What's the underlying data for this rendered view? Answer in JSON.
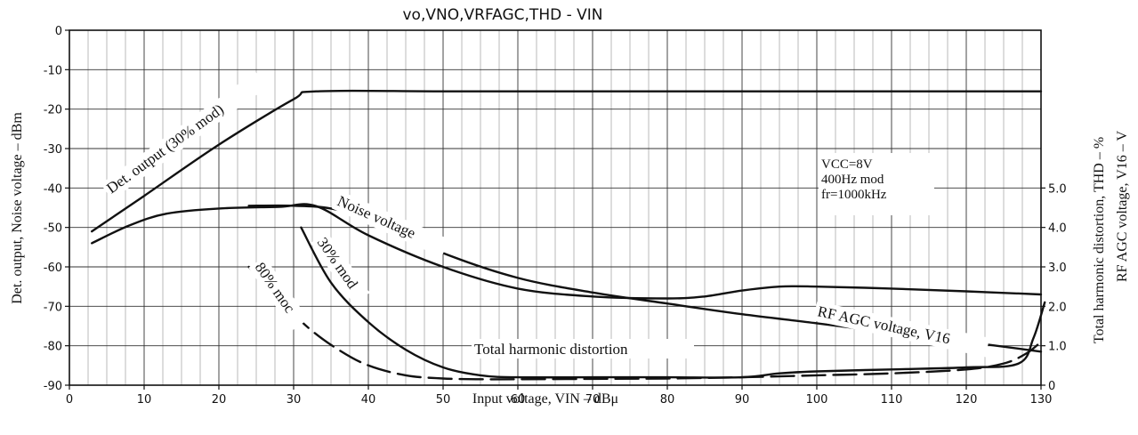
{
  "chart_data": {
    "type": "line",
    "title": "vo,VNO,VRFAGC,THD - VIN",
    "xlabel": "Input voltage, VIN  –  dBμ",
    "ylabel_left": "Det. output, Noise voltage  –  dBm",
    "ylabel_right_thd": "Total harmonic distortion, THD  –  %",
    "ylabel_right_agc": "RF AGC voltage, V16  –  V",
    "xlim": [
      0,
      130
    ],
    "ylim_left": [
      -90,
      0
    ],
    "ylim_right": [
      0,
      5.0
    ],
    "x_ticks": [
      "0",
      "10",
      "20",
      "30",
      "40",
      "50",
      "60",
      "70",
      "80",
      "90",
      "100",
      "110",
      "120",
      "130"
    ],
    "y_ticks_left": [
      "0",
      "-10",
      "-20",
      "-30",
      "-40",
      "-50",
      "-60",
      "-70",
      "-80",
      "-90"
    ],
    "y_ticks_right": [
      "5.0",
      "4.0",
      "3.0",
      "2.0",
      "1.0",
      "0"
    ],
    "conditions": [
      "VCC=8V",
      "400Hz mod",
      "fr=1000kHz"
    ],
    "series": [
      {
        "name": "Det. output (30% mod)",
        "axis": "left",
        "x": [
          3,
          10,
          20,
          30,
          33,
          50,
          70,
          90,
          110,
          130
        ],
        "y": [
          -51,
          -42,
          -29,
          -17.5,
          -15.5,
          -15.5,
          -15.5,
          -15.5,
          -15.5,
          -15.5
        ]
      },
      {
        "name": "Noise voltage",
        "axis": "left",
        "x": [
          3,
          8,
          13,
          20,
          28,
          33,
          40,
          50,
          60,
          70,
          80,
          85,
          90,
          95,
          100,
          110,
          120,
          130
        ],
        "y": [
          -54,
          -49.5,
          -46.5,
          -45.2,
          -44.8,
          -44.6,
          -52,
          -60,
          -65.5,
          -67.5,
          -68,
          -67.5,
          -66,
          -65,
          -65,
          -65.5,
          -66.2,
          -67
        ]
      },
      {
        "name": "RF AGC voltage, V16",
        "axis": "right",
        "x": [
          24,
          30,
          35,
          40,
          50,
          60,
          70,
          80,
          90,
          100,
          110,
          120,
          130
        ],
        "y": [
          4.55,
          4.55,
          4.48,
          4.2,
          3.35,
          2.72,
          2.35,
          2.07,
          1.8,
          1.57,
          1.33,
          1.1,
          0.85
        ]
      },
      {
        "name": "Total harmonic distortion (30% mod)",
        "axis": "right",
        "x": [
          31,
          35,
          40,
          45,
          50,
          55,
          60,
          70,
          80,
          90,
          95,
          100,
          110,
          120,
          127,
          129,
          130.5
        ],
        "y": [
          4.0,
          2.6,
          1.6,
          0.9,
          0.45,
          0.25,
          0.2,
          0.2,
          0.2,
          0.2,
          0.3,
          0.35,
          0.4,
          0.45,
          0.55,
          1.2,
          2.1
        ]
      },
      {
        "name": "Total harmonic distortion (80% mod)",
        "axis": "right",
        "dashed": true,
        "x": [
          24,
          28,
          32,
          36,
          40,
          45,
          50,
          55,
          60,
          70,
          80,
          90,
          100,
          110,
          120,
          125,
          128,
          130
        ],
        "y": [
          3.0,
          2.2,
          1.45,
          0.9,
          0.5,
          0.25,
          0.17,
          0.15,
          0.15,
          0.16,
          0.17,
          0.2,
          0.25,
          0.3,
          0.4,
          0.55,
          0.8,
          1.1
        ]
      }
    ],
    "curve_labels": {
      "det": "Det. output (30% mod)",
      "noise": "Noise voltage",
      "mod30": "30% mod",
      "mod80": "80% moc",
      "agc": "RF AGC voltage, V16",
      "thd": "Total harmonic distortion"
    },
    "grid": true
  }
}
